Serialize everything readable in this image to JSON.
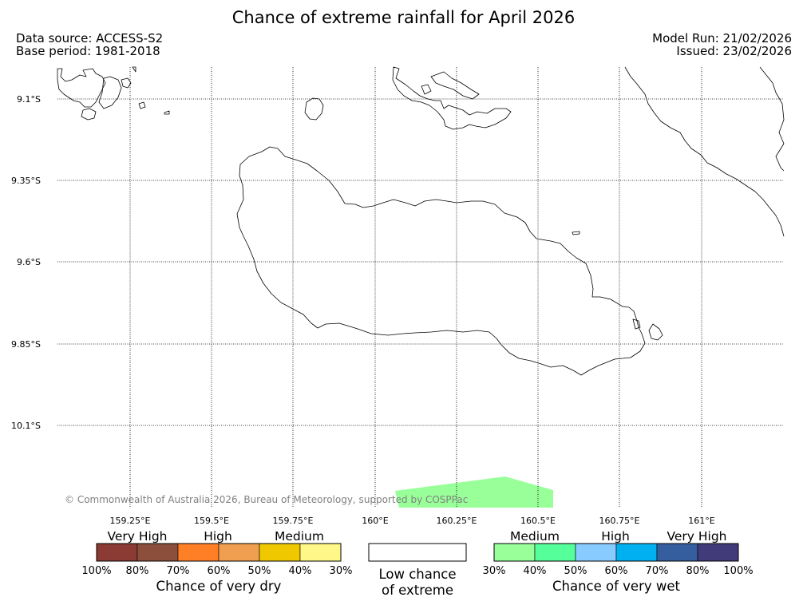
{
  "header": {
    "title": "Chance of extreme rainfall for April 2026",
    "data_source": "Data source: ACCESS-S2",
    "base_period": "Base period: 1981-2018",
    "model_run": "Model Run: 21/02/2026",
    "issued": "Issued: 23/02/2026"
  },
  "map": {
    "latitudes": [
      "9.1°S",
      "9.35°S",
      "9.6°S",
      "9.85°S",
      "10.1°S"
    ],
    "longitudes": [
      "159.25°E",
      "159.5°E",
      "159.75°E",
      "160°E",
      "160.25°E",
      "160.5°E",
      "160.75°E",
      "161°E"
    ],
    "copyright": "© Commonwealth of Australia 2026, Bureau of Meteorology, supported by COSPPac",
    "gridlines": "dotted",
    "coastline_color": "#000000",
    "highlight_color": "#99ff99"
  },
  "legend": {
    "dry": {
      "title": "Chance of very dry",
      "categories": [
        "Very High",
        "High",
        "Medium"
      ],
      "ticks": [
        "100%",
        "80%",
        "70%",
        "60%",
        "50%",
        "40%",
        "30%"
      ],
      "colors": [
        "#8b3a34",
        "#8c4f3b",
        "#ff7f27",
        "#ef9f4f",
        "#f0c800",
        "#fff888"
      ]
    },
    "neutral": {
      "line1": "Low chance",
      "line2": "of extreme",
      "color": "#ffffff"
    },
    "wet": {
      "title": "Chance of very wet",
      "categories": [
        "Medium",
        "High",
        "Very High"
      ],
      "ticks": [
        "30%",
        "40%",
        "50%",
        "60%",
        "70%",
        "80%",
        "100%"
      ],
      "colors": [
        "#99ff99",
        "#55ff99",
        "#88ccff",
        "#00b0f0",
        "#355e9e",
        "#413b7a"
      ]
    }
  }
}
